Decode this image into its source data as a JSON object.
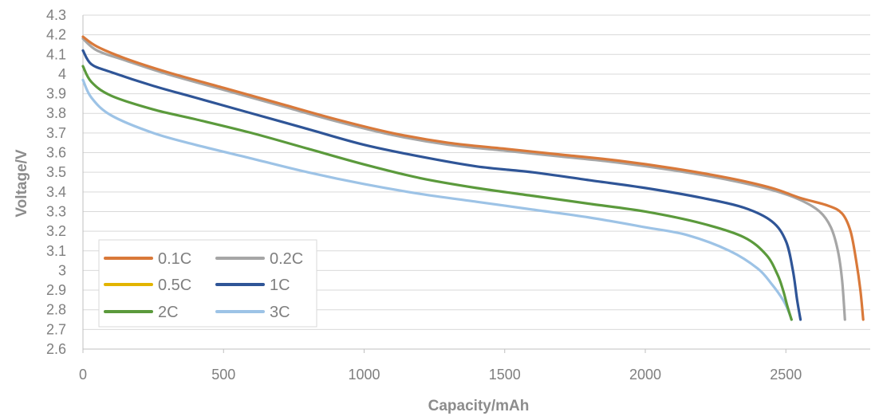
{
  "chart_data": {
    "type": "line",
    "title": "",
    "xlabel": "Capacity/mAh",
    "ylabel": "Voltage/V",
    "xlim": [
      0,
      2800
    ],
    "ylim": [
      2.6,
      4.3
    ],
    "x_ticks": [
      "0",
      "500",
      "1000",
      "1500",
      "2000",
      "2500"
    ],
    "y_ticks": [
      "2.6",
      "2.7",
      "2.8",
      "2.9",
      "3",
      "3.1",
      "3.2",
      "3.3",
      "3.4",
      "3.5",
      "3.6",
      "3.7",
      "3.8",
      "3.9",
      "4",
      "4.1",
      "4.2",
      "4.3"
    ],
    "grid": true,
    "legend_position": "bottom-left",
    "series": [
      {
        "name": "0.1C",
        "color": "#d9793a",
        "x": [
          0,
          50,
          150,
          300,
          500,
          700,
          900,
          1100,
          1300,
          1500,
          1700,
          1900,
          2100,
          2300,
          2450,
          2550,
          2650,
          2700,
          2730,
          2750,
          2765,
          2775
        ],
        "y": [
          4.19,
          4.14,
          4.08,
          4.01,
          3.93,
          3.85,
          3.77,
          3.7,
          3.65,
          3.62,
          3.59,
          3.56,
          3.52,
          3.47,
          3.42,
          3.37,
          3.33,
          3.29,
          3.2,
          3.05,
          2.9,
          2.75
        ]
      },
      {
        "name": "0.2C",
        "color": "#a6a6a6",
        "x": [
          0,
          50,
          150,
          300,
          500,
          700,
          900,
          1100,
          1300,
          1500,
          1700,
          1900,
          2100,
          2300,
          2450,
          2550,
          2620,
          2660,
          2685,
          2700,
          2710
        ],
        "y": [
          4.18,
          4.12,
          4.07,
          4.0,
          3.92,
          3.84,
          3.76,
          3.69,
          3.64,
          3.61,
          3.58,
          3.55,
          3.51,
          3.46,
          3.41,
          3.36,
          3.3,
          3.22,
          3.1,
          2.95,
          2.75
        ]
      },
      {
        "name": "0.5C",
        "color": "#e2b400",
        "x": [],
        "y": []
      },
      {
        "name": "1C",
        "color": "#2f5597",
        "x": [
          0,
          30,
          100,
          250,
          400,
          600,
          800,
          1000,
          1200,
          1400,
          1600,
          1800,
          2000,
          2200,
          2350,
          2450,
          2500,
          2525,
          2540,
          2552
        ],
        "y": [
          4.12,
          4.05,
          4.01,
          3.94,
          3.88,
          3.8,
          3.72,
          3.64,
          3.58,
          3.53,
          3.5,
          3.46,
          3.42,
          3.37,
          3.32,
          3.25,
          3.15,
          3.0,
          2.85,
          2.75
        ]
      },
      {
        "name": "2C",
        "color": "#5b9a3c",
        "x": [
          0,
          30,
          100,
          250,
          400,
          600,
          800,
          1000,
          1200,
          1400,
          1600,
          1800,
          2000,
          2200,
          2350,
          2430,
          2470,
          2490,
          2505,
          2520
        ],
        "y": [
          4.04,
          3.96,
          3.89,
          3.82,
          3.77,
          3.7,
          3.62,
          3.54,
          3.47,
          3.42,
          3.38,
          3.34,
          3.3,
          3.24,
          3.17,
          3.08,
          2.98,
          2.9,
          2.82,
          2.75
        ]
      },
      {
        "name": "3C",
        "color": "#9dc3e6",
        "x": [
          0,
          30,
          100,
          250,
          400,
          600,
          800,
          1000,
          1200,
          1400,
          1600,
          1800,
          2000,
          2150,
          2300,
          2400,
          2450,
          2490,
          2510,
          2520
        ],
        "y": [
          3.97,
          3.88,
          3.79,
          3.7,
          3.64,
          3.57,
          3.5,
          3.44,
          3.39,
          3.35,
          3.31,
          3.27,
          3.22,
          3.18,
          3.1,
          3.01,
          2.93,
          2.85,
          2.79,
          2.75
        ]
      }
    ]
  }
}
